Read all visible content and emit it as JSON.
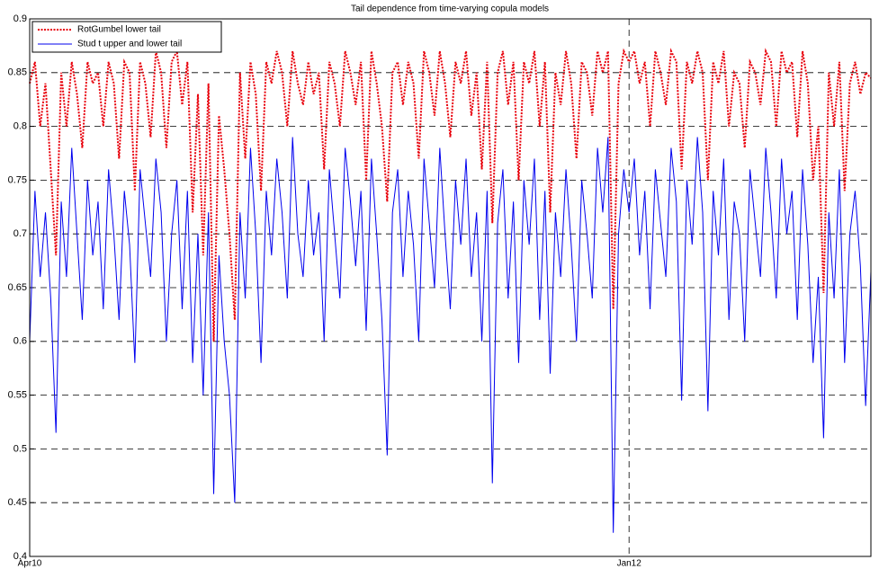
{
  "chart_data": {
    "type": "line",
    "title": "Tail dependence from time-varying copula models",
    "categories": [
      "Apr10",
      null,
      null,
      null,
      null,
      null,
      null,
      null,
      null,
      null,
      null,
      null,
      null,
      null,
      null,
      null,
      null,
      null,
      null,
      null,
      null,
      null,
      null,
      null,
      null,
      null,
      null,
      null,
      null,
      null,
      null,
      null,
      null,
      null,
      null,
      null,
      null,
      null,
      null,
      null,
      null,
      null,
      null,
      null,
      null,
      null,
      null,
      null,
      null,
      null,
      null,
      null,
      null,
      null,
      null,
      null,
      null,
      null,
      null,
      null,
      null,
      null,
      null,
      null,
      null,
      null,
      null,
      null,
      null,
      null,
      null,
      null,
      null,
      null,
      null,
      null,
      null,
      null,
      null,
      null,
      null,
      null,
      null,
      null,
      null,
      null,
      null,
      null,
      null,
      null,
      null,
      null,
      null,
      null,
      null,
      null,
      null,
      null,
      null,
      null,
      null,
      null,
      null,
      null,
      null,
      null,
      null,
      null,
      null,
      null,
      null,
      null,
      null,
      null,
      "Jan12",
      null,
      null,
      null,
      null,
      null,
      null,
      null,
      null,
      null,
      null,
      null,
      null,
      null,
      null,
      null,
      null,
      null,
      null,
      null,
      null,
      null,
      null,
      null,
      null,
      null,
      null,
      null,
      null,
      null,
      null,
      null,
      null,
      null,
      null,
      null,
      null,
      null,
      null,
      null,
      null,
      null,
      null,
      null,
      null,
      null,
      null
    ],
    "series": [
      {
        "name": "RotGumbel lower tail",
        "color": "#e8000b",
        "linestyle": "dotted",
        "values": [
          0.84,
          0.86,
          0.8,
          0.84,
          0.76,
          0.68,
          0.85,
          0.8,
          0.86,
          0.83,
          0.78,
          0.86,
          0.84,
          0.85,
          0.8,
          0.86,
          0.84,
          0.77,
          0.86,
          0.85,
          0.74,
          0.86,
          0.84,
          0.79,
          0.87,
          0.85,
          0.78,
          0.86,
          0.87,
          0.82,
          0.86,
          0.72,
          0.83,
          0.68,
          0.84,
          0.6,
          0.81,
          0.76,
          0.7,
          0.62,
          0.85,
          0.77,
          0.86,
          0.83,
          0.74,
          0.86,
          0.84,
          0.87,
          0.85,
          0.8,
          0.87,
          0.84,
          0.82,
          0.86,
          0.83,
          0.85,
          0.76,
          0.86,
          0.84,
          0.8,
          0.87,
          0.85,
          0.82,
          0.86,
          0.75,
          0.87,
          0.84,
          0.8,
          0.73,
          0.85,
          0.86,
          0.82,
          0.86,
          0.84,
          0.77,
          0.87,
          0.85,
          0.81,
          0.87,
          0.84,
          0.79,
          0.86,
          0.84,
          0.87,
          0.81,
          0.85,
          0.76,
          0.86,
          0.71,
          0.85,
          0.87,
          0.82,
          0.86,
          0.75,
          0.86,
          0.84,
          0.87,
          0.8,
          0.86,
          0.72,
          0.85,
          0.82,
          0.87,
          0.84,
          0.77,
          0.86,
          0.85,
          0.81,
          0.87,
          0.85,
          0.87,
          0.63,
          0.84,
          0.87,
          0.86,
          0.87,
          0.84,
          0.86,
          0.8,
          0.87,
          0.85,
          0.82,
          0.87,
          0.86,
          0.76,
          0.86,
          0.84,
          0.87,
          0.85,
          0.75,
          0.86,
          0.84,
          0.87,
          0.8,
          0.85,
          0.84,
          0.78,
          0.86,
          0.85,
          0.82,
          0.87,
          0.86,
          0.8,
          0.87,
          0.85,
          0.86,
          0.79,
          0.87,
          0.84,
          0.75,
          0.8,
          0.645,
          0.85,
          0.8,
          0.86,
          0.74,
          0.84,
          0.86,
          0.83,
          0.85,
          0.845
        ]
      },
      {
        "name": "Stud t upper and lower tail",
        "color": "#0000ee",
        "linestyle": "solid",
        "values": [
          0.6,
          0.74,
          0.66,
          0.72,
          0.64,
          0.515,
          0.73,
          0.66,
          0.78,
          0.7,
          0.62,
          0.75,
          0.68,
          0.73,
          0.63,
          0.76,
          0.7,
          0.62,
          0.74,
          0.69,
          0.58,
          0.76,
          0.71,
          0.66,
          0.77,
          0.72,
          0.6,
          0.7,
          0.75,
          0.63,
          0.74,
          0.58,
          0.7,
          0.55,
          0.72,
          0.458,
          0.68,
          0.6,
          0.55,
          0.45,
          0.72,
          0.64,
          0.78,
          0.7,
          0.58,
          0.74,
          0.68,
          0.77,
          0.72,
          0.64,
          0.79,
          0.7,
          0.66,
          0.75,
          0.68,
          0.72,
          0.6,
          0.76,
          0.7,
          0.64,
          0.78,
          0.73,
          0.67,
          0.74,
          0.61,
          0.77,
          0.7,
          0.62,
          0.494,
          0.72,
          0.76,
          0.66,
          0.74,
          0.69,
          0.6,
          0.77,
          0.71,
          0.65,
          0.78,
          0.7,
          0.63,
          0.75,
          0.69,
          0.77,
          0.66,
          0.72,
          0.6,
          0.74,
          0.468,
          0.71,
          0.76,
          0.64,
          0.73,
          0.58,
          0.75,
          0.69,
          0.77,
          0.62,
          0.74,
          0.57,
          0.72,
          0.66,
          0.76,
          0.69,
          0.6,
          0.75,
          0.7,
          0.64,
          0.78,
          0.72,
          0.79,
          0.422,
          0.7,
          0.76,
          0.72,
          0.77,
          0.68,
          0.74,
          0.63,
          0.76,
          0.71,
          0.66,
          0.78,
          0.73,
          0.545,
          0.75,
          0.69,
          0.79,
          0.72,
          0.535,
          0.74,
          0.68,
          0.77,
          0.62,
          0.73,
          0.7,
          0.6,
          0.76,
          0.71,
          0.66,
          0.78,
          0.72,
          0.64,
          0.77,
          0.7,
          0.74,
          0.62,
          0.76,
          0.69,
          0.58,
          0.66,
          0.51,
          0.72,
          0.64,
          0.76,
          0.58,
          0.7,
          0.74,
          0.67,
          0.54,
          0.665
        ]
      }
    ],
    "ylim": [
      0.4,
      0.9
    ],
    "yticks": [
      0.4,
      0.45,
      0.5,
      0.55,
      0.6,
      0.65,
      0.7,
      0.75,
      0.8,
      0.85,
      0.9
    ],
    "grid": true,
    "legend": "upper-left"
  }
}
